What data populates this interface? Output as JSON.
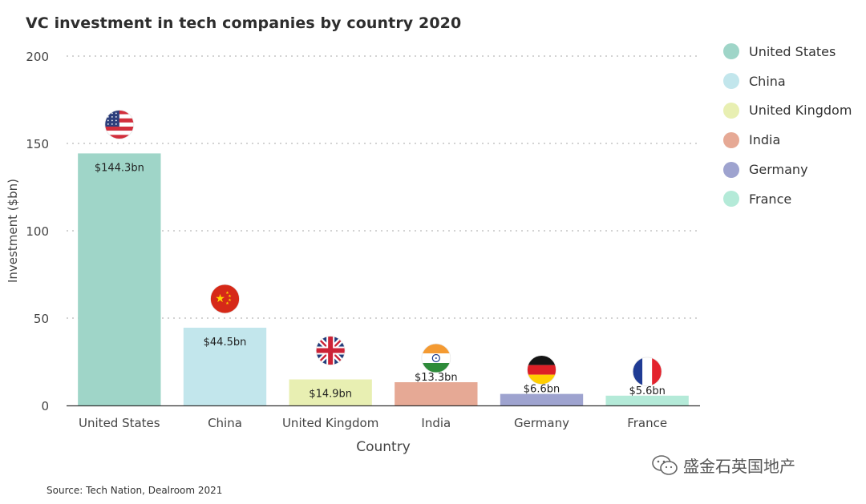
{
  "chart_data": {
    "type": "bar",
    "title": "VC investment in tech companies by country 2020",
    "xlabel": "Country",
    "ylabel": "Investment ($bn)",
    "categories": [
      "United States",
      "China",
      "United Kingdom",
      "India",
      "Germany",
      "France"
    ],
    "values": [
      144.3,
      44.5,
      14.9,
      13.3,
      6.6,
      5.6
    ],
    "data_labels": [
      "$144.3bn",
      "$44.5bn",
      "$14.9bn",
      "$13.3bn",
      "$6.6bn",
      "$5.6bn"
    ],
    "colors": [
      "#9fd5c8",
      "#c2e6ec",
      "#e8efb2",
      "#e6a995",
      "#9ea3cf",
      "#b4ead8"
    ],
    "flag_icons": [
      "us-flag-icon",
      "china-flag-icon",
      "uk-flag-icon",
      "india-flag-icon",
      "germany-flag-icon",
      "france-flag-icon"
    ],
    "ylim": [
      0,
      200
    ],
    "yticks": [
      0,
      50,
      100,
      150,
      200
    ],
    "grid": true,
    "legend_position": "right"
  },
  "source": "Source: Tech Nation, Dealroom 2021",
  "watermark": "盛金石英国地产"
}
